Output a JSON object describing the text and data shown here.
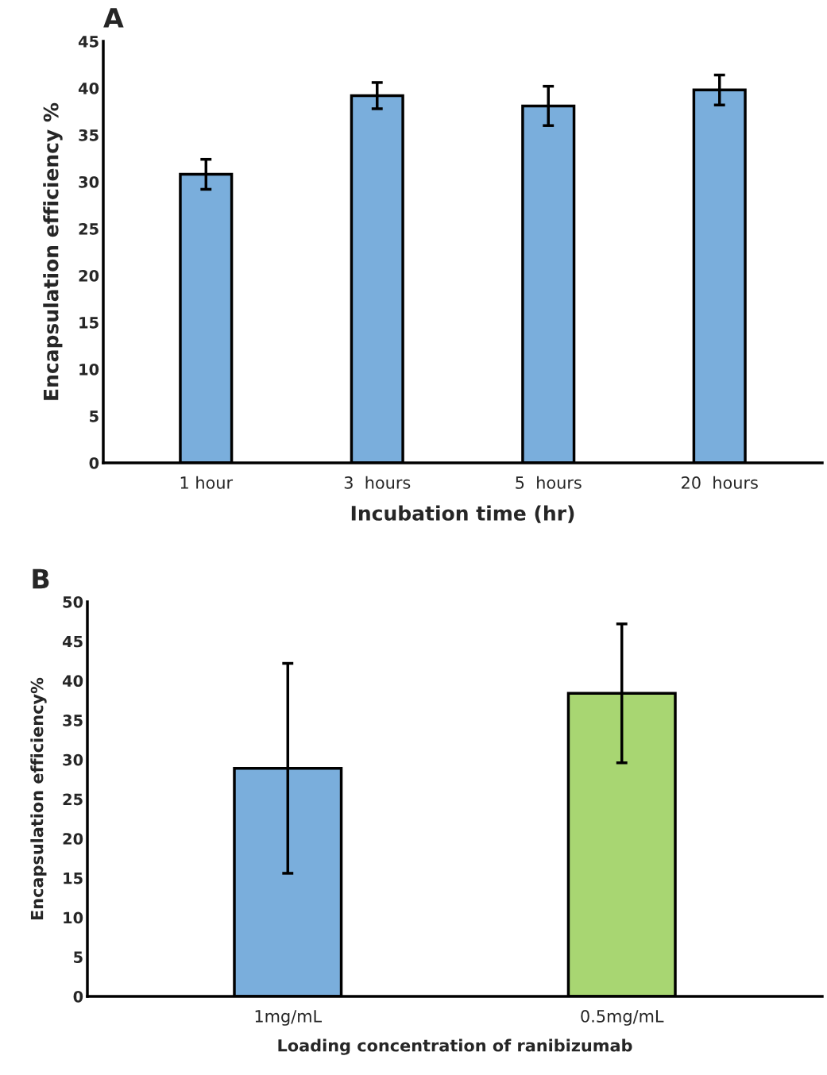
{
  "chart_data": [
    {
      "type": "bar",
      "annotations": [
        "A"
      ],
      "xlabel": "Incubation time (hr)",
      "ylabel": "Encapsulation efficiency %",
      "categories": [
        "1 hour",
        "3  hours",
        "5  hours",
        "20  hours"
      ],
      "values": [
        30.8,
        39.2,
        38.1,
        39.8
      ],
      "errors": [
        1.6,
        1.4,
        2.1,
        1.6
      ],
      "colors": [
        "#7aaedc",
        "#7aaedc",
        "#7aaedc",
        "#7aaedc"
      ],
      "ylim": [
        0,
        45
      ],
      "yticks": [
        0,
        5,
        10,
        15,
        20,
        25,
        30,
        35,
        40,
        45
      ]
    },
    {
      "type": "bar",
      "annotations": [
        "B"
      ],
      "xlabel": "Loading concentration of ranibizumab",
      "ylabel": "Encapsulation efficiency%",
      "categories": [
        "1mg/mL",
        "0.5mg/mL"
      ],
      "values": [
        28.9,
        38.4
      ],
      "errors": [
        13.3,
        8.8
      ],
      "colors": [
        "#7aaedc",
        "#a8d672"
      ],
      "ylim": [
        0,
        50
      ],
      "yticks": [
        0,
        5,
        10,
        15,
        20,
        25,
        30,
        35,
        40,
        45,
        50
      ]
    }
  ]
}
